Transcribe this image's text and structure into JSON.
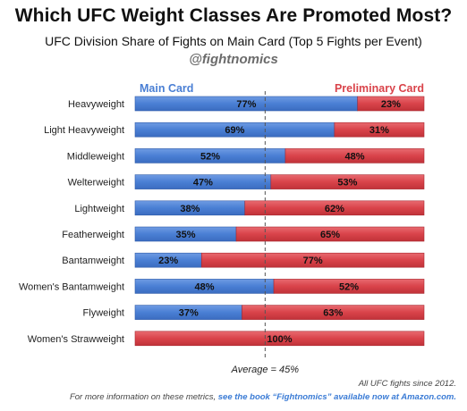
{
  "header": {
    "title": "Which UFC Weight Classes Are Promoted Most?",
    "subtitle": "UFC Division Share of Fights on Main Card (Top 5 Fights per Event)",
    "handle": "@fightnomics"
  },
  "footer": {
    "note": "All UFC fights since 2012.",
    "promo_prefix": "For more information on these metrics, ",
    "promo_link": "see the book “Fightnomics” available now at Amazon.com."
  },
  "chart_data": {
    "type": "bar",
    "orientation": "horizontal",
    "stacked": true,
    "categories": [
      "Heavyweight",
      "Light Heavyweight",
      "Middleweight",
      "Welterweight",
      "Lightweight",
      "Featherweight",
      "Bantamweight",
      "Women's Bantamweight",
      "Flyweight",
      "Women's Strawweight"
    ],
    "series": [
      {
        "name": "Main Card",
        "color": "#4a7fd4",
        "values": [
          77,
          69,
          52,
          47,
          38,
          35,
          23,
          48,
          37,
          0
        ]
      },
      {
        "name": "Preliminary Card",
        "color": "#d9434a",
        "values": [
          23,
          31,
          48,
          53,
          62,
          65,
          77,
          52,
          63,
          100
        ]
      }
    ],
    "labels": {
      "main": [
        "77%",
        "69%",
        "52%",
        "47%",
        "38%",
        "35%",
        "23%",
        "48%",
        "37%",
        ""
      ],
      "prelim": [
        "23%",
        "31%",
        "48%",
        "53%",
        "62%",
        "65%",
        "77%",
        "52%",
        "63%",
        "100%"
      ]
    },
    "xlim": [
      0,
      100
    ],
    "reference_line": {
      "value": 45,
      "label": "Average = 45%"
    },
    "legend": {
      "placement": "top"
    }
  }
}
